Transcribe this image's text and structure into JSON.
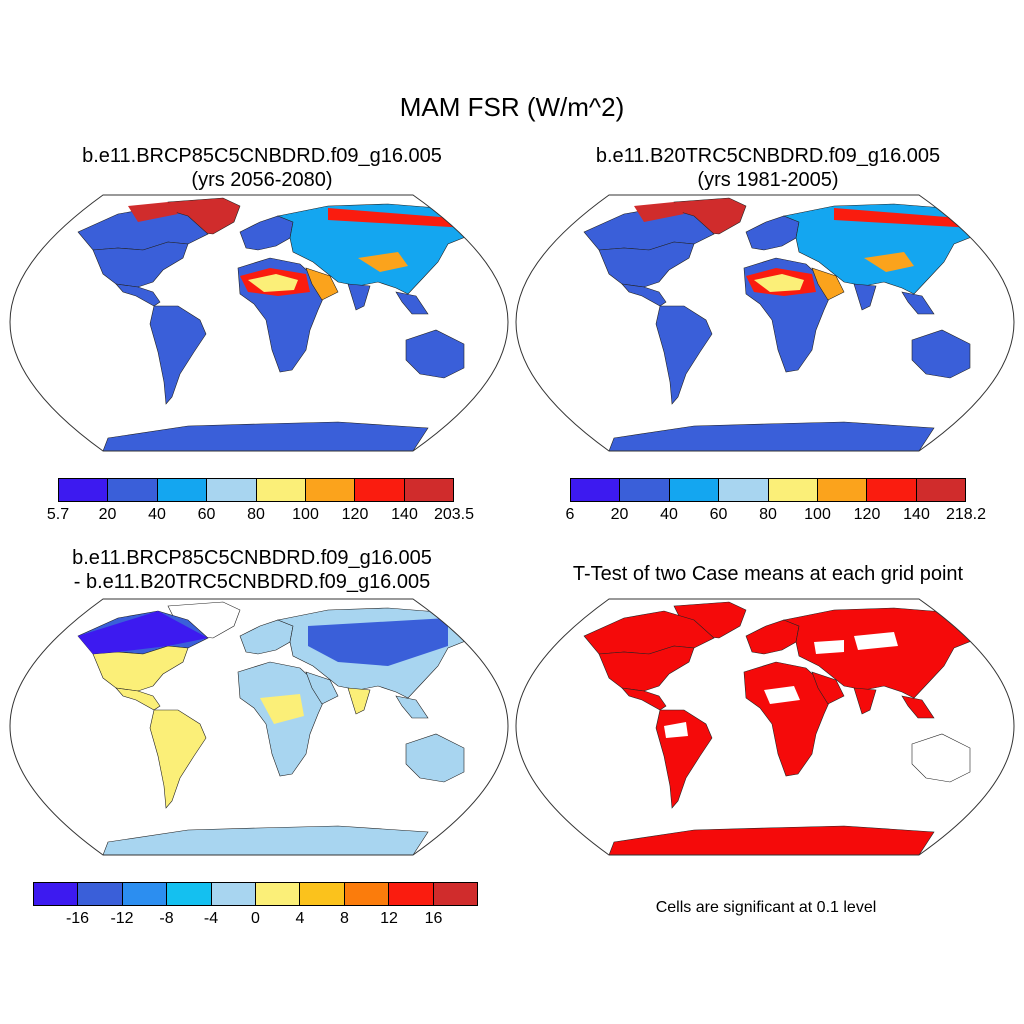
{
  "title": "MAM FSR (W/m^2)",
  "panels": [
    {
      "id": "top-left",
      "title_line1": "b.e11.BRCP85C5CNBDRD.f09_g16.005",
      "title_line2": "(yrs 2056-2080)",
      "colorbar": {
        "colors": [
          "#3d1af0",
          "#3a5fd9",
          "#14a6f0",
          "#a8d5f0",
          "#fbef78",
          "#fba31c",
          "#fa1c0f",
          "#d02c2c"
        ],
        "labels": [
          "5.7",
          "20",
          "40",
          "60",
          "80",
          "100",
          "120",
          "140",
          "203.5"
        ]
      }
    },
    {
      "id": "top-right",
      "title_line1": "b.e11.B20TRC5CNBDRD.f09_g16.005",
      "title_line2": "(yrs 1981-2005)",
      "colorbar": {
        "colors": [
          "#3d1af0",
          "#3a5fd9",
          "#14a6f0",
          "#a8d5f0",
          "#fbef78",
          "#fba31c",
          "#fa1c0f",
          "#d02c2c"
        ],
        "labels": [
          "6",
          "20",
          "40",
          "60",
          "80",
          "100",
          "120",
          "140",
          "218.2"
        ]
      }
    },
    {
      "id": "bottom-left",
      "title_line1": "b.e11.BRCP85C5CNBDRD.f09_g16.005",
      "title_line2": "- b.e11.B20TRC5CNBDRD.f09_g16.005",
      "colorbar": {
        "colors": [
          "#3d1af0",
          "#3a5fd9",
          "#2c8ef0",
          "#14c0f0",
          "#a8d5f0",
          "#fbef78",
          "#fbc21c",
          "#fb7c0c",
          "#fa1c0f",
          "#d02c2c"
        ],
        "labels": [
          "-16",
          "-12",
          "-8",
          "-4",
          "0",
          "4",
          "8",
          "12",
          "16"
        ]
      }
    },
    {
      "id": "bottom-right",
      "title_line1": "T-Test of two Case means at each grid point",
      "note": "Cells are significant at 0.1 level",
      "significance_color": "#f50a0a"
    }
  ]
}
